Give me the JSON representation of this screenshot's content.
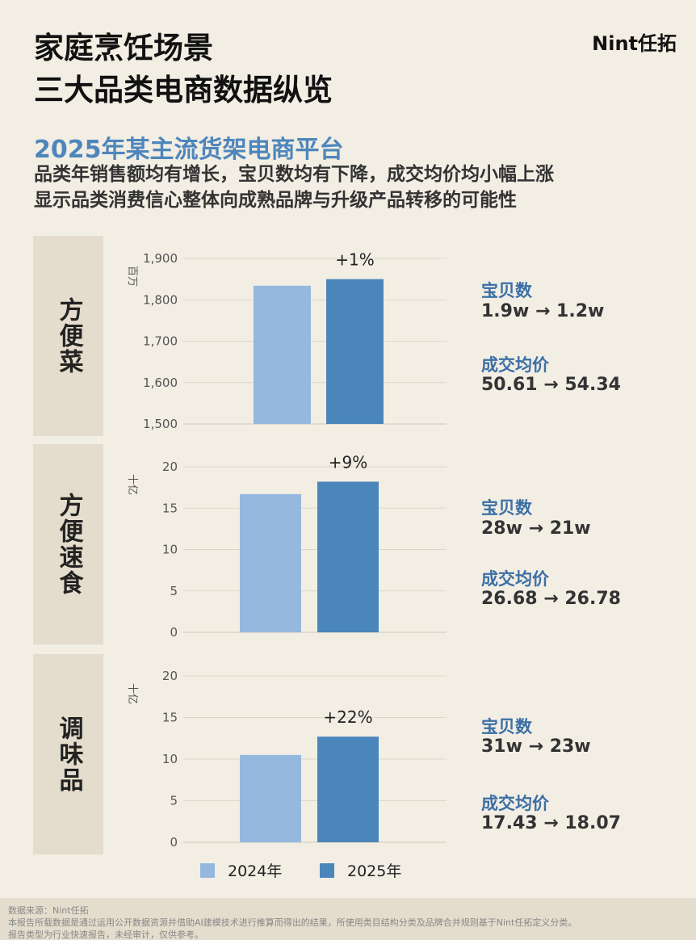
{
  "header": {
    "title_line1": "家庭烹饪场景",
    "title_line2": "三大品类电商数据纵览",
    "logo": "Nint任拓",
    "subtitle": "2025年某主流货架电商平台",
    "desc_line1": "品类年销售额均有增长，宝贝数均有下降，成交均价均小幅上涨",
    "desc_line2": "显示品类消费信心整体向成熟品牌与升级产品转移的可能性"
  },
  "colors": {
    "y2024": "#95b8df",
    "y2025": "#4b86bb",
    "accent": "#3c6fa5",
    "label_bg": "#e4dccc"
  },
  "legend": {
    "y2024": "2024年",
    "y2025": "2025年"
  },
  "chart_data": [
    {
      "type": "bar",
      "category": "方便菜",
      "unit": "百万",
      "categories": [
        "2024年",
        "2025年"
      ],
      "values": [
        1834,
        1850
      ],
      "ylim": [
        1500,
        1900
      ],
      "ticks": [
        1500,
        1600,
        1700,
        1800,
        1900
      ],
      "tick_labels": [
        "1,500",
        "1,600",
        "1,700",
        "1,800",
        "1,900"
      ],
      "growth": "+1%",
      "items_label": "宝贝数",
      "items_value": "1.9w → 1.2w",
      "price_label": "成交均价",
      "price_value": "50.61 → 54.34"
    },
    {
      "type": "bar",
      "category": "方便速食",
      "unit": "十亿",
      "categories": [
        "2024年",
        "2025年"
      ],
      "values": [
        16.7,
        18.2
      ],
      "ylim": [
        0,
        20
      ],
      "ticks": [
        0,
        5,
        10,
        15,
        20
      ],
      "tick_labels": [
        "0",
        "5",
        "10",
        "15",
        "20"
      ],
      "growth": "+9%",
      "items_label": "宝贝数",
      "items_value": "28w → 21w",
      "price_label": "成交均价",
      "price_value": "26.68 → 26.78"
    },
    {
      "type": "bar",
      "category": "调味品",
      "unit": "十亿",
      "categories": [
        "2024年",
        "2025年"
      ],
      "values": [
        10.5,
        12.7
      ],
      "ylim": [
        0,
        20
      ],
      "ticks": [
        0,
        5,
        10,
        15,
        20
      ],
      "tick_labels": [
        "0",
        "5",
        "10",
        "15",
        "20"
      ],
      "growth": "+22%",
      "items_label": "宝贝数",
      "items_value": "31w → 23w",
      "price_label": "成交均价",
      "price_value": "17.43 → 18.07"
    }
  ],
  "footer": {
    "line1": "数据来源：Nint任拓",
    "line2": "本报告所载数据是通过运用公开数据资源并借助AI建模技术进行推算而得出的结果，所使用类目结构分类及品牌合并规则基于Nint任拓定义分类。",
    "line3": "报告类型为行业快速报告，未经审计，仅供参考。"
  }
}
